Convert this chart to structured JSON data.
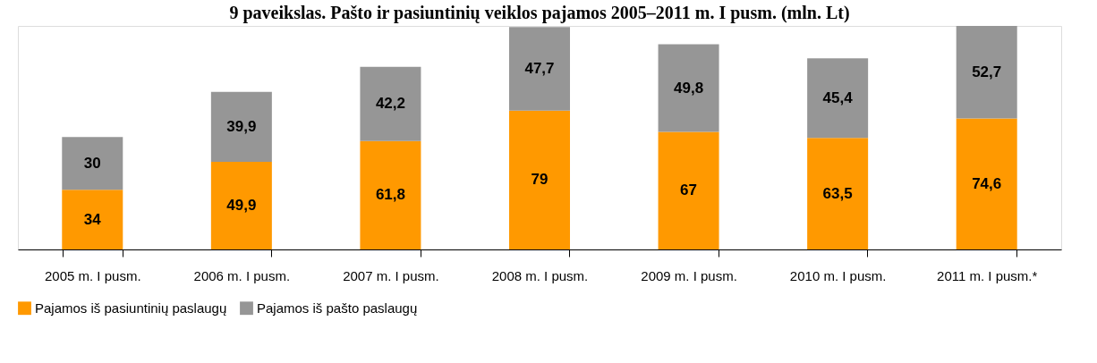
{
  "chart_data": {
    "type": "bar",
    "title": "9 paveikslas. Pašto ir pasiuntinių veiklos pajamos 2005–2011 m. I pusm. (mln. Lt)",
    "categories": [
      "2005 m. I pusm.",
      "2006 m. I pusm.",
      "2007 m. I pusm.",
      "2008 m. I pusm.",
      "2009 m. I pusm.",
      "2010 m. I pusm.",
      "2011 m. I pusm.*"
    ],
    "stacked": true,
    "legend": "bottom left",
    "series": [
      {
        "name": "Pajamos iš pasiuntinių paslaugų",
        "color": "#ff9900",
        "values": [
          34,
          49.9,
          61.8,
          79,
          67,
          63.5,
          74.6
        ],
        "value_labels": [
          "34",
          "49,9",
          "61,8",
          "79",
          "67",
          "63,5",
          "74,6"
        ]
      },
      {
        "name": "Pajamos iš pašto paslaugų",
        "color": "#969696",
        "values": [
          30,
          39.9,
          42.2,
          47.7,
          49.8,
          45.4,
          52.7
        ],
        "value_labels": [
          "30",
          "39,9",
          "42,2",
          "47,7",
          "49,8",
          "45,4",
          "52,7"
        ]
      }
    ]
  }
}
